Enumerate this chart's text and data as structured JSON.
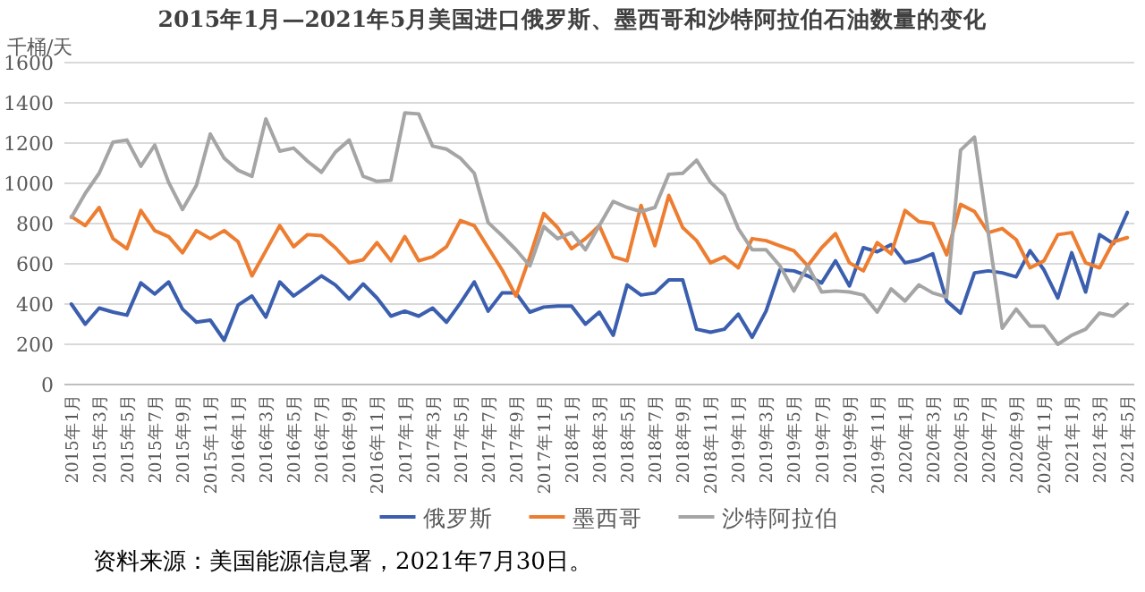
{
  "chart_data": {
    "type": "line",
    "title": "2015年1月—2021年5月美国进口俄罗斯、墨西哥和沙特阿拉伯石油数量的变化",
    "ylabel": "千桶/天",
    "categories": [
      "2015年1月",
      null,
      "2015年3月",
      null,
      "2015年5月",
      null,
      "2015年7月",
      null,
      "2015年9月",
      null,
      "2015年11月",
      null,
      "2016年1月",
      null,
      "2016年3月",
      null,
      "2016年5月",
      null,
      "2016年7月",
      null,
      "2016年9月",
      null,
      "2016年11月",
      null,
      "2017年1月",
      null,
      "2017年3月",
      null,
      "2017年5月",
      null,
      "2017年7月",
      null,
      "2017年9月",
      null,
      "2017年11月",
      null,
      "2018年1月",
      null,
      "2018年3月",
      null,
      "2018年5月",
      null,
      "2018年7月",
      null,
      "2018年9月",
      null,
      "2018年11月",
      null,
      "2019年1月",
      null,
      "2019年3月",
      null,
      "2019年5月",
      null,
      "2019年7月",
      null,
      "2019年9月",
      null,
      "2019年11月",
      null,
      "2020年1月",
      null,
      "2020年3月",
      null,
      "2020年5月",
      null,
      "2020年7月",
      null,
      "2020年9月",
      null,
      "2020年11月",
      null,
      "2021年1月",
      null,
      "2021年3月",
      null,
      "2021年5月"
    ],
    "series": [
      {
        "name": "俄罗斯",
        "color": "#3b5fae",
        "values": [
          400,
          300,
          380,
          360,
          345,
          505,
          450,
          510,
          375,
          310,
          320,
          220,
          395,
          440,
          335,
          510,
          440,
          490,
          540,
          495,
          425,
          500,
          430,
          340,
          365,
          340,
          380,
          310,
          405,
          510,
          365,
          455,
          455,
          360,
          385,
          390,
          390,
          300,
          360,
          245,
          495,
          445,
          455,
          520,
          520,
          275,
          260,
          275,
          350,
          235,
          365,
          570,
          565,
          540,
          505,
          615,
          490,
          680,
          660,
          695,
          605,
          620,
          650,
          415,
          355,
          555,
          565,
          555,
          535,
          665,
          570,
          430,
          655,
          460,
          745,
          700,
          855
        ]
      },
      {
        "name": "墨西哥",
        "color": "#ed7d31",
        "values": [
          835,
          790,
          880,
          725,
          675,
          865,
          765,
          735,
          655,
          765,
          725,
          765,
          710,
          540,
          665,
          790,
          685,
          745,
          740,
          680,
          605,
          620,
          705,
          615,
          735,
          615,
          635,
          685,
          815,
          790,
          680,
          570,
          440,
          635,
          850,
          780,
          675,
          725,
          790,
          635,
          615,
          890,
          690,
          940,
          780,
          715,
          605,
          635,
          580,
          725,
          715,
          690,
          665,
          590,
          680,
          750,
          605,
          565,
          705,
          650,
          865,
          810,
          800,
          645,
          895,
          860,
          755,
          775,
          720,
          580,
          615,
          745,
          755,
          605,
          580,
          710,
          730
        ]
      },
      {
        "name": "沙特阿拉伯",
        "color": "#a5a5a5",
        "values": [
          830,
          950,
          1050,
          1205,
          1215,
          1085,
          1190,
          1005,
          870,
          990,
          1245,
          1125,
          1065,
          1035,
          1320,
          1160,
          1175,
          1110,
          1055,
          1155,
          1215,
          1035,
          1010,
          1015,
          1350,
          1345,
          1185,
          1170,
          1125,
          1050,
          805,
          740,
          670,
          590,
          785,
          725,
          755,
          670,
          790,
          910,
          880,
          860,
          880,
          1045,
          1050,
          1115,
          1005,
          940,
          775,
          670,
          670,
          590,
          465,
          590,
          460,
          465,
          460,
          445,
          360,
          475,
          415,
          495,
          455,
          435,
          1165,
          1230,
          750,
          280,
          375,
          290,
          290,
          200,
          245,
          275,
          355,
          340,
          400
        ]
      }
    ],
    "ylim": [
      0,
      1600
    ],
    "yticks": [
      0,
      200,
      400,
      600,
      800,
      1000,
      1200,
      1400,
      1600
    ],
    "grid": "y",
    "legend": "bottom",
    "marker": "none",
    "line_style": "solid",
    "annotations": [
      "资料来源：美国能源信息署，2021年7月30日。"
    ]
  }
}
